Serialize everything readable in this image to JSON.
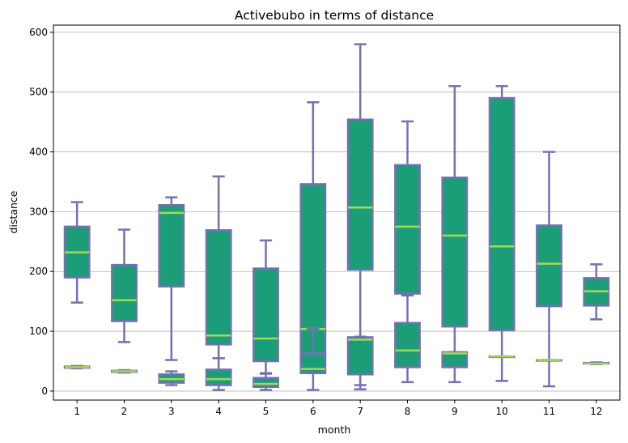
{
  "chart_data": {
    "type": "box",
    "title": "Activebubo in terms of distance",
    "xlabel": "month",
    "ylabel": "distance",
    "categories": [
      "1",
      "2",
      "3",
      "4",
      "5",
      "6",
      "7",
      "8",
      "9",
      "10",
      "11",
      "12"
    ],
    "ylim": [
      -15,
      612
    ],
    "yticks": [
      0,
      100,
      200,
      300,
      400,
      500,
      600
    ],
    "grid": "horizontal",
    "colors": {
      "box_fill": "#1b9e77",
      "box_edge": "#7570b3",
      "median": "#a6d854",
      "grid": "#b0b0b0"
    },
    "series": [
      {
        "boxes": [
          {
            "whislo": 148,
            "q1": 190,
            "med": 232,
            "q3": 275,
            "whishi": 316
          },
          {
            "whislo": 82,
            "q1": 117,
            "med": 152,
            "q3": 211,
            "whishi": 270
          },
          {
            "whislo": 52,
            "q1": 175,
            "med": 298,
            "q3": 311,
            "whishi": 324
          },
          {
            "whislo": 55,
            "q1": 78,
            "med": 93,
            "q3": 269,
            "whishi": 359
          },
          {
            "whislo": 30,
            "q1": 50,
            "med": 88,
            "q3": 205,
            "whishi": 252
          },
          {
            "whislo": 33,
            "q1": 63,
            "med": 104,
            "q3": 346,
            "whishi": 483
          },
          {
            "whislo": 10,
            "q1": 203,
            "med": 307,
            "q3": 454,
            "whishi": 580
          },
          {
            "whislo": 160,
            "q1": 163,
            "med": 275,
            "q3": 378,
            "whishi": 451
          },
          {
            "whislo": 65,
            "q1": 108,
            "med": 260,
            "q3": 357,
            "whishi": 510
          },
          {
            "whislo": 17,
            "q1": 102,
            "med": 242,
            "q3": 490,
            "whishi": 510
          },
          {
            "whislo": 8,
            "q1": 142,
            "med": 213,
            "q3": 277,
            "whishi": 400
          },
          {
            "whislo": 120,
            "q1": 143,
            "med": 167,
            "q3": 189,
            "whishi": 212
          }
        ]
      },
      {
        "boxes": [
          {
            "whislo": 38,
            "q1": 39,
            "med": 40,
            "q3": 41,
            "whishi": 42
          },
          {
            "whislo": 31,
            "q1": 32,
            "med": 33,
            "q3": 34,
            "whishi": 35
          },
          {
            "whislo": 10,
            "q1": 14,
            "med": 20,
            "q3": 28,
            "whishi": 33
          },
          {
            "whislo": 2,
            "q1": 10,
            "med": 20,
            "q3": 36,
            "whishi": 55
          },
          {
            "whislo": 2,
            "q1": 7,
            "med": 12,
            "q3": 22,
            "whishi": 29
          },
          {
            "whislo": 2,
            "q1": 30,
            "med": 37,
            "q3": 62,
            "whishi": 104
          },
          {
            "whislo": 3,
            "q1": 28,
            "med": 86,
            "q3": 90,
            "whishi": 91
          },
          {
            "whislo": 15,
            "q1": 40,
            "med": 68,
            "q3": 114,
            "whishi": 160
          },
          {
            "whislo": 15,
            "q1": 40,
            "med": 63,
            "q3": 65,
            "whishi": 65
          },
          {
            "whislo": 58,
            "q1": 58,
            "med": 58,
            "q3": 58,
            "whishi": 58
          },
          {
            "whislo": 52,
            "q1": 52,
            "med": 52,
            "q3": 52,
            "whishi": 52
          },
          {
            "whislo": 45,
            "q1": 46,
            "med": 46,
            "q3": 47,
            "whishi": 48
          }
        ]
      }
    ]
  }
}
